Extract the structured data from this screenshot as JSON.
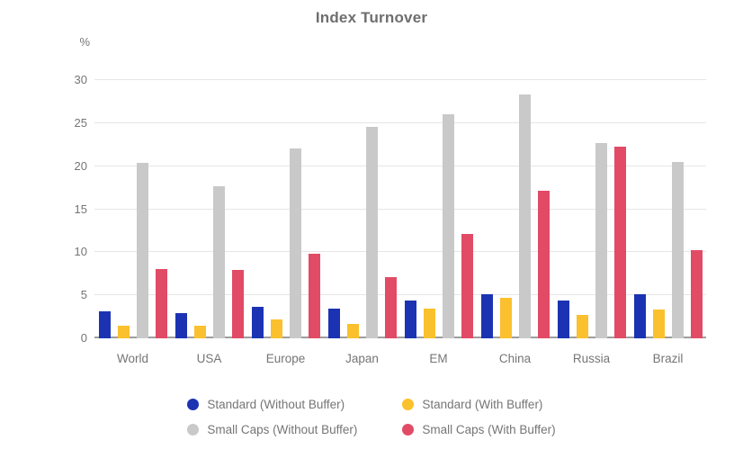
{
  "chart_data": {
    "type": "bar",
    "title": "Index Turnover",
    "ylabel": "%",
    "ylim": [
      0,
      30
    ],
    "yticks": [
      0,
      5,
      10,
      15,
      20,
      25,
      30
    ],
    "grid": true,
    "legend_position": "bottom",
    "categories": [
      "World",
      "USA",
      "Europe",
      "Japan",
      "EM",
      "China",
      "Russia",
      "Brazil"
    ],
    "series": [
      {
        "name": "Standard (Without Buffer)",
        "color": "#1b33b3",
        "values": [
          3.1,
          2.9,
          3.7,
          3.5,
          4.4,
          5.1,
          4.4,
          5.1
        ]
      },
      {
        "name": "Standard (With Buffer)",
        "color": "#fbc02d",
        "values": [
          1.5,
          1.5,
          2.2,
          1.7,
          3.5,
          4.7,
          2.7,
          3.3
        ]
      },
      {
        "name": "Small Caps (Without Buffer)",
        "color": "#c9c9c9",
        "values": [
          20.4,
          17.7,
          22.1,
          24.6,
          26.0,
          28.3,
          22.7,
          20.5
        ]
      },
      {
        "name": "Small Caps (With Buffer)",
        "color": "#e14b66",
        "values": [
          8.1,
          7.9,
          9.8,
          7.1,
          12.1,
          17.1,
          22.3,
          10.2
        ]
      }
    ],
    "styles": {
      "gridline_color": "#e6e6e6",
      "baseline_color": "#9e9e9e",
      "axis_text_color": "#757575",
      "title_color": "#6e6e6e",
      "background": "#ffffff"
    }
  }
}
